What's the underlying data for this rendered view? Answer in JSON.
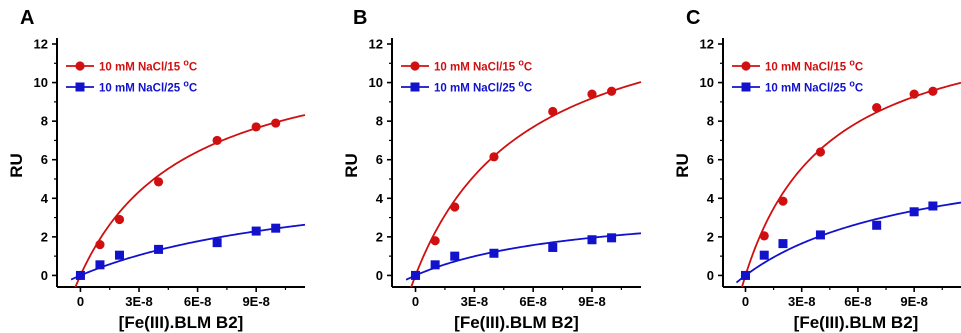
{
  "chart_data": [
    {
      "type": "scatter",
      "panel": "A",
      "xlabel": "[Fe(III).BLM B2]",
      "ylabel": "RU",
      "xlim": [
        -1.2e-08,
        1.15e-07
      ],
      "ylim": [
        -0.6,
        12
      ],
      "xticks": [
        0,
        3e-08,
        6e-08,
        9e-08
      ],
      "xtick_labels": [
        "0",
        "3E-8",
        "6E-8",
        "9E-8"
      ],
      "yticks": [
        0,
        2,
        4,
        6,
        8,
        10,
        12
      ],
      "ytick_labels": [
        "0",
        "2",
        "4",
        "6",
        "8",
        "10",
        "12"
      ],
      "grid": false,
      "legend_position": "top-left",
      "series": [
        {
          "name": "10 mM NaCl/15 °C",
          "legend_text": "10 mM NaCl/15 ",
          "legend_unit": "C",
          "legend_sup": "o",
          "color": "#d01010",
          "marker": "circle",
          "x": [
            0,
            1e-08,
            2e-08,
            4e-08,
            7e-08,
            9e-08,
            1e-07
          ],
          "y": [
            0.0,
            1.6,
            2.9,
            4.85,
            7.0,
            7.7,
            7.9
          ],
          "fit": {
            "rmax": 12.3,
            "kd": 5.5e-08
          }
        },
        {
          "name": "10 mM NaCl/25 °C",
          "legend_text": "10 mM NaCl/25 ",
          "legend_unit": "C",
          "legend_sup": "o",
          "color": "#1212cc",
          "marker": "square",
          "x": [
            0,
            1e-08,
            2e-08,
            4e-08,
            7e-08,
            9e-08,
            1e-07
          ],
          "y": [
            0.0,
            0.55,
            1.05,
            1.35,
            1.7,
            2.3,
            2.45
          ],
          "fit": {
            "rmax": 5.6,
            "kd": 1.3e-07
          }
        }
      ]
    },
    {
      "type": "scatter",
      "panel": "B",
      "xlabel": "[Fe(III).BLM B2]",
      "ylabel": "RU",
      "xlim": [
        -1.2e-08,
        1.15e-07
      ],
      "ylim": [
        -0.6,
        12
      ],
      "xticks": [
        0,
        3e-08,
        6e-08,
        9e-08
      ],
      "xtick_labels": [
        "0",
        "3E-8",
        "6E-8",
        "9E-8"
      ],
      "yticks": [
        0,
        2,
        4,
        6,
        8,
        10,
        12
      ],
      "ytick_labels": [
        "0",
        "2",
        "4",
        "6",
        "8",
        "10",
        "12"
      ],
      "grid": false,
      "legend_position": "top-left",
      "series": [
        {
          "name": "10 mM NaCl/15 °C",
          "legend_text": "10 mM NaCl/15 ",
          "legend_unit": "C",
          "legend_sup": "o",
          "color": "#d01010",
          "marker": "circle",
          "x": [
            0,
            1e-08,
            2e-08,
            4e-08,
            7e-08,
            9e-08,
            1e-07
          ],
          "y": [
            0.0,
            1.8,
            3.55,
            6.15,
            8.5,
            9.4,
            9.55
          ],
          "fit": {
            "rmax": 15.0,
            "kd": 5.7e-08
          }
        },
        {
          "name": "10 mM NaCl/25 °C",
          "legend_text": "10 mM NaCl/25 ",
          "legend_unit": "C",
          "legend_sup": "o",
          "color": "#1212cc",
          "marker": "square",
          "x": [
            0,
            1e-08,
            2e-08,
            4e-08,
            7e-08,
            9e-08,
            1e-07
          ],
          "y": [
            0.0,
            0.55,
            1.0,
            1.15,
            1.45,
            1.85,
            1.95
          ],
          "fit": {
            "rmax": 3.8,
            "kd": 8.5e-08
          }
        }
      ]
    },
    {
      "type": "scatter",
      "panel": "C",
      "xlabel": "[Fe(III).BLM B2]",
      "ylabel": "RU",
      "xlim": [
        -1.2e-08,
        1.15e-07
      ],
      "ylim": [
        -0.6,
        12
      ],
      "xticks": [
        0,
        3e-08,
        6e-08,
        9e-08
      ],
      "xtick_labels": [
        "0",
        "3E-8",
        "6E-8",
        "9E-8"
      ],
      "yticks": [
        0,
        2,
        4,
        6,
        8,
        10,
        12
      ],
      "ytick_labels": [
        "0",
        "2",
        "4",
        "6",
        "8",
        "10",
        "12"
      ],
      "grid": false,
      "legend_position": "top-left",
      "series": [
        {
          "name": "10 mM NaCl/15 °C",
          "legend_text": "10 mM NaCl/15 ",
          "legend_unit": "C",
          "legend_sup": "o",
          "color": "#d01010",
          "marker": "circle",
          "x": [
            0,
            1e-08,
            2e-08,
            4e-08,
            7e-08,
            9e-08,
            1e-07
          ],
          "y": [
            0.0,
            2.05,
            3.85,
            6.4,
            8.7,
            9.4,
            9.55
          ],
          "fit": {
            "rmax": 13.9,
            "kd": 4.5e-08
          }
        },
        {
          "name": "10 mM NaCl/25 °C",
          "legend_text": "10 mM NaCl/25 ",
          "legend_unit": "C",
          "legend_sup": "o",
          "color": "#1212cc",
          "marker": "square",
          "x": [
            0,
            1e-08,
            2e-08,
            4e-08,
            7e-08,
            9e-08,
            1e-07
          ],
          "y": [
            0.0,
            1.05,
            1.65,
            2.1,
            2.6,
            3.3,
            3.6
          ],
          "fit": {
            "rmax": 6.9,
            "kd": 9.5e-08
          }
        }
      ]
    }
  ]
}
